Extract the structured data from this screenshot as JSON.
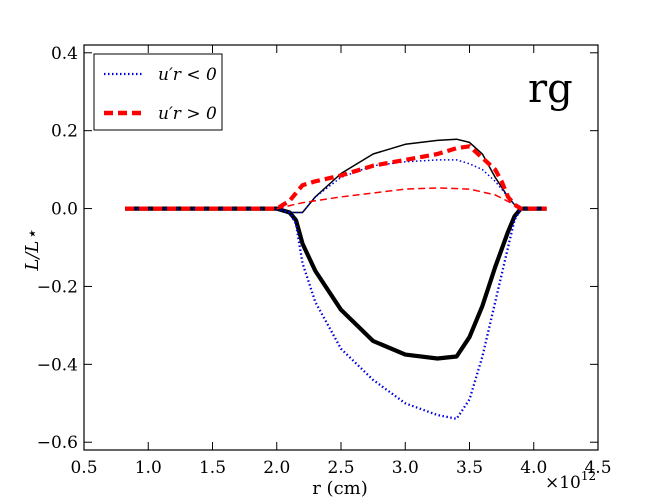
{
  "chart_data": {
    "type": "line",
    "panel_label": "rg",
    "xlabel": "r (cm)",
    "ylabel": "L/L⋆",
    "x_multiplier": "×10",
    "x_multiplier_exp": "12",
    "xlim": [
      0.5,
      4.5
    ],
    "ylim": [
      -0.62,
      0.42
    ],
    "x_ticks": [
      0.5,
      1.0,
      1.5,
      2.0,
      2.5,
      3.0,
      3.5,
      4.0,
      4.5
    ],
    "x_tick_labels": [
      "0.5",
      "1.0",
      "1.5",
      "2.0",
      "2.5",
      "3.0",
      "3.5",
      "4.0",
      "4.5"
    ],
    "y_ticks": [
      -0.6,
      -0.4,
      -0.2,
      0.0,
      0.2,
      0.4
    ],
    "y_tick_labels": [
      "−0.6",
      "−0.4",
      "−0.2",
      "0.0",
      "0.2",
      "0.4"
    ],
    "legend": {
      "placement": "top-left",
      "entries": [
        {
          "label": "u′r < 0",
          "series": "blue-dotted"
        },
        {
          "label": "u′r > 0",
          "series": "red-dashed-thick"
        }
      ]
    },
    "series": [
      {
        "name": "black-thin",
        "color": "#000000",
        "style": "solid",
        "weight": "thin",
        "x": [
          0.82,
          2.0,
          2.1,
          2.2,
          2.3,
          2.5,
          2.75,
          3.0,
          3.25,
          3.4,
          3.5,
          3.6,
          3.7,
          3.8,
          3.85,
          3.9,
          4.1
        ],
        "y": [
          0.0,
          0.0,
          -0.01,
          -0.01,
          0.03,
          0.09,
          0.14,
          0.165,
          0.175,
          0.178,
          0.17,
          0.14,
          0.08,
          0.03,
          0.01,
          0.0,
          0.0
        ]
      },
      {
        "name": "black-thick",
        "color": "#000000",
        "style": "solid",
        "weight": "thick",
        "x": [
          0.82,
          2.0,
          2.1,
          2.15,
          2.2,
          2.3,
          2.5,
          2.75,
          3.0,
          3.25,
          3.4,
          3.5,
          3.6,
          3.7,
          3.8,
          3.85,
          3.9,
          4.1
        ],
        "y": [
          0.0,
          0.0,
          -0.01,
          -0.03,
          -0.09,
          -0.16,
          -0.26,
          -0.34,
          -0.375,
          -0.385,
          -0.38,
          -0.33,
          -0.25,
          -0.15,
          -0.06,
          -0.02,
          0.0,
          0.0
        ]
      },
      {
        "name": "blue-dotted",
        "color": "#0000dd",
        "style": "dotted",
        "weight": "medium",
        "x": [
          0.82,
          2.0,
          2.1,
          2.15,
          2.2,
          2.3,
          2.5,
          2.75,
          3.0,
          3.25,
          3.4,
          3.5,
          3.6,
          3.7,
          3.8,
          3.85,
          3.9,
          4.1
        ],
        "y": [
          0.0,
          0.0,
          -0.01,
          -0.04,
          -0.14,
          -0.24,
          -0.36,
          -0.44,
          -0.5,
          -0.53,
          -0.54,
          -0.49,
          -0.38,
          -0.24,
          -0.1,
          -0.03,
          0.0,
          0.0
        ]
      },
      {
        "name": "blue-dotted-upper",
        "color": "#0000dd",
        "style": "dotted",
        "weight": "thin",
        "x": [
          2.0,
          2.1,
          2.2,
          2.3,
          2.5,
          2.75,
          3.0,
          3.25,
          3.4,
          3.5,
          3.6,
          3.7,
          3.8,
          3.85,
          3.9
        ],
        "y": [
          0.0,
          -0.01,
          -0.01,
          0.03,
          0.08,
          0.11,
          0.12,
          0.125,
          0.125,
          0.115,
          0.1,
          0.07,
          0.03,
          0.01,
          0.0
        ]
      },
      {
        "name": "red-dashed-thick",
        "color": "#ff0000",
        "style": "dashed",
        "weight": "thick",
        "x": [
          0.82,
          2.0,
          2.1,
          2.2,
          2.3,
          2.5,
          2.75,
          3.0,
          3.25,
          3.4,
          3.5,
          3.6,
          3.7,
          3.75,
          3.8,
          3.85,
          3.9,
          4.1
        ],
        "y": [
          0.0,
          0.0,
          0.02,
          0.06,
          0.07,
          0.085,
          0.11,
          0.125,
          0.14,
          0.155,
          0.16,
          0.13,
          0.1,
          0.07,
          0.03,
          0.01,
          0.0,
          0.0
        ]
      },
      {
        "name": "red-dashed-thin",
        "color": "#ff0000",
        "style": "dashed",
        "weight": "thin",
        "x": [
          2.0,
          2.2,
          2.5,
          2.75,
          3.0,
          3.25,
          3.5,
          3.7,
          3.85,
          3.9
        ],
        "y": [
          0.0,
          0.015,
          0.03,
          0.04,
          0.05,
          0.053,
          0.05,
          0.035,
          0.01,
          0.0
        ]
      }
    ]
  }
}
